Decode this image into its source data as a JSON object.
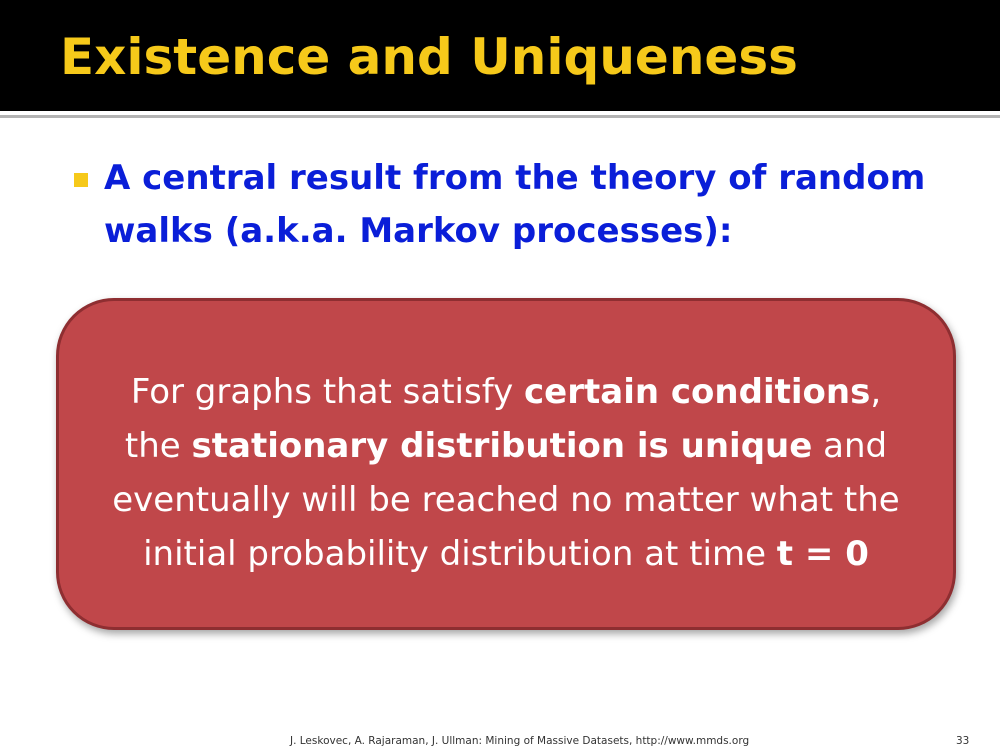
{
  "slide": {
    "title": "Existence and Uniqueness",
    "bullet": {
      "line1": "A central result from the theory of random",
      "line2": "walks (a.k.a. Markov processes):"
    },
    "callout": {
      "l1a": "For graphs that satisfy ",
      "l1b": "certain conditions",
      "l1c": ",",
      "l2a": "the ",
      "l2b": "stationary distribution is unique",
      "l2c": " and",
      "l3": "eventually will be reached no matter what the",
      "l4a": "initial probability distribution at time ",
      "l4b": "t = 0"
    },
    "footer": "J. Leskovec, A. Rajaraman, J. Ullman: Mining of Massive Datasets, http://www.mmds.org",
    "page_number": "33"
  },
  "colors": {
    "title_bar": "#000000",
    "title_text": "#f6c91a",
    "bullet_text": "#0a1ed8",
    "bullet_marker": "#f6c91a",
    "callout_fill": "#c0474a",
    "callout_border": "#8e2e31",
    "callout_text": "#ffffff"
  }
}
